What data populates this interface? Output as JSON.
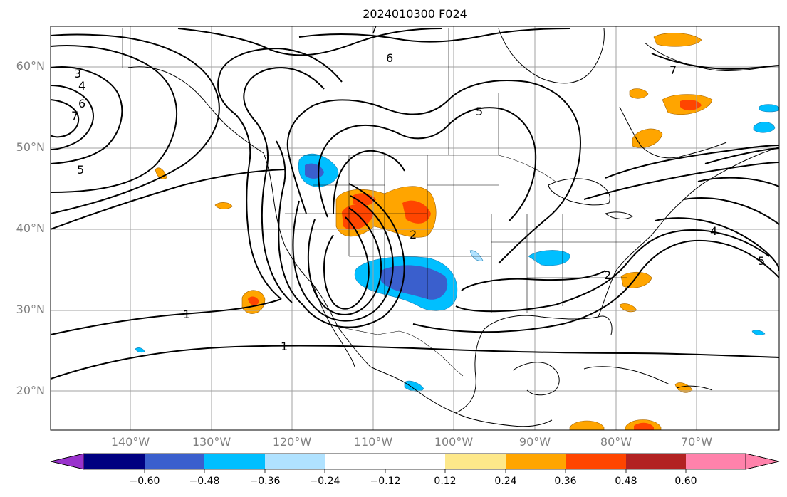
{
  "title": "2024010300 F024",
  "lat_labels": [
    "60°N",
    "50°N",
    "40°N",
    "30°N",
    "20°N"
  ],
  "lon_labels": [
    "140°W",
    "130°W",
    "120°W",
    "110°W",
    "100°W",
    "90°W",
    "80°W",
    "70°W"
  ],
  "contour_labels": [
    "1",
    "1",
    "2",
    "3",
    "4",
    "4",
    "5",
    "5",
    "5",
    "6",
    "6",
    "7",
    "7",
    "7",
    "2"
  ],
  "colorbar": {
    "ticks": [
      "−0.60",
      "−0.48",
      "−0.36",
      "−0.24",
      "−0.12",
      "0.12",
      "0.24",
      "0.36",
      "0.48",
      "0.60"
    ],
    "colors": [
      "#9932cc",
      "#000080",
      "#3a5fcd",
      "#00bfff",
      "#b0e2ff",
      "#ffffff",
      "#fde88a",
      "#ffa500",
      "#ff4500",
      "#b22222",
      "#ff82ab"
    ]
  },
  "map": {
    "projection": "lat-lon",
    "lat_range": [
      15,
      65
    ],
    "lon_range": [
      -150,
      -60
    ],
    "grid": true,
    "contour_color": "#000000"
  }
}
